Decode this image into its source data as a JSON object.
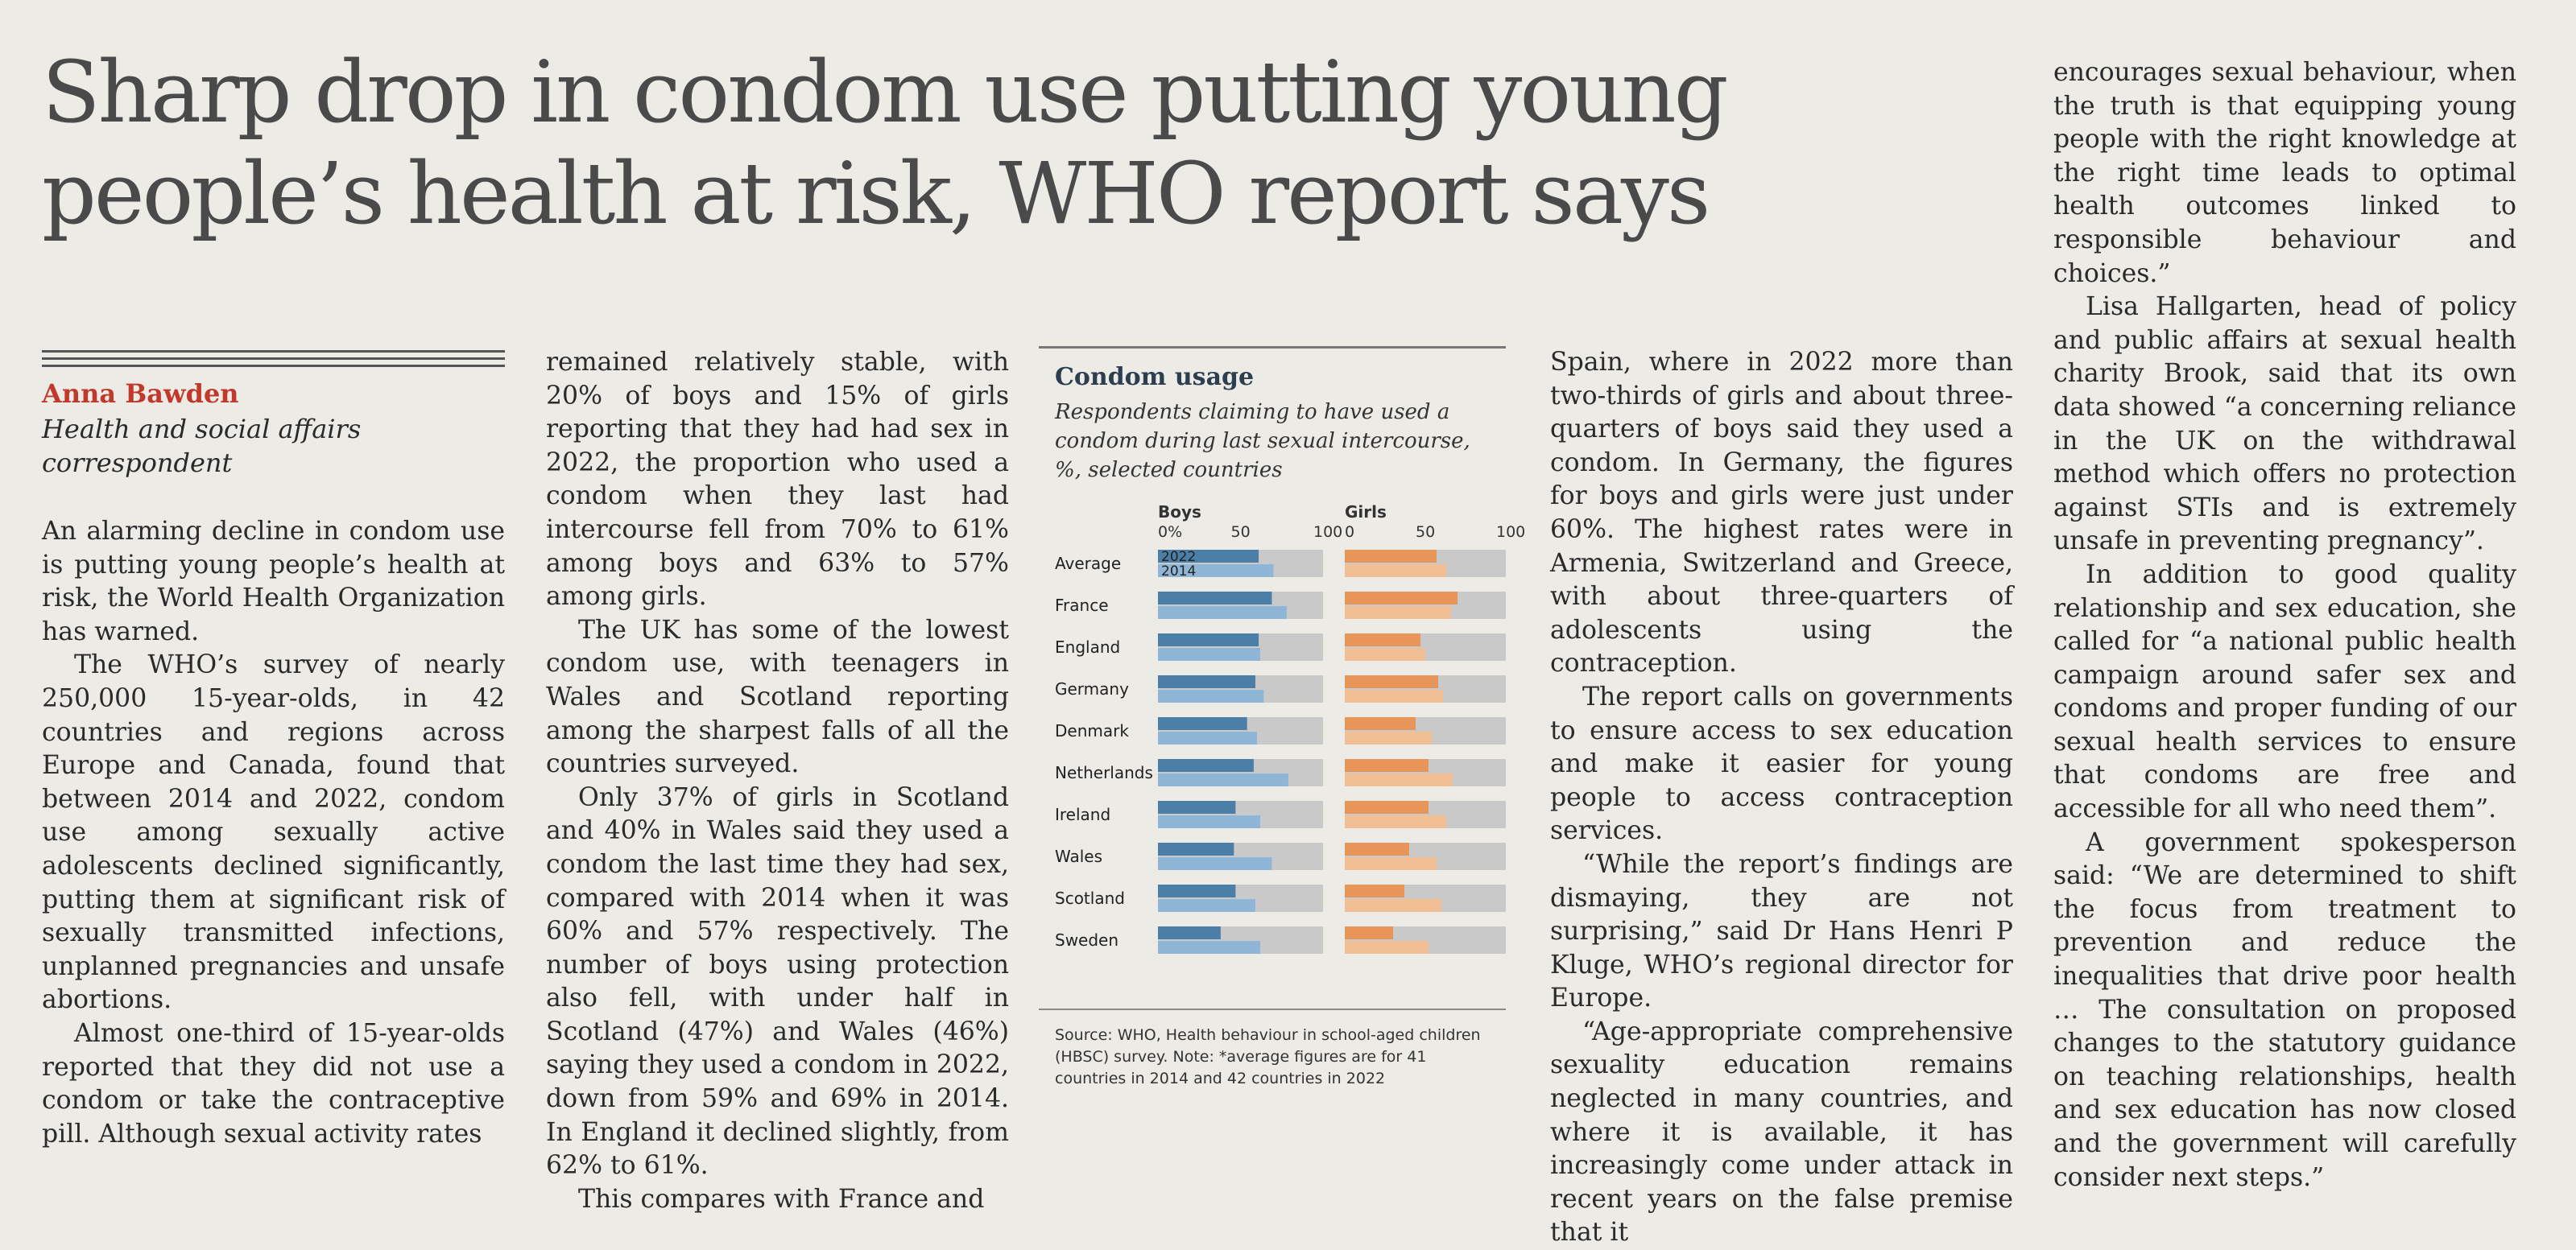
{
  "headline": "Sharp drop in condom use putting young people’s health at risk, WHO report says",
  "author": "Anna Bawden",
  "author_role": "Health and social affairs correspondent",
  "columns": {
    "c1": [
      "An alarming decline in condom use is putting young people’s health at risk, the World Health Organization has warned.",
      "The WHO’s survey of nearly 250,000 15-year-olds, in 42 countries and regions across Europe and Canada, found that between 2014 and 2022, condom use among sexually active adolescents declined significantly, putting them at significant risk of sexually transmitted infections, unplanned pregnancies and unsafe abortions.",
      "Almost one-third of 15-year-olds reported that they did not use a condom or take the contraceptive pill. Although sexual activity rates"
    ],
    "c2": [
      "remained relatively stable, with 20% of boys and 15% of girls reporting that they had had sex in 2022, the proportion who used a condom when they last had intercourse fell from 70% to 61% among boys and 63% to 57% among girls.",
      "The UK has some of the lowest condom use, with teenagers in Wales and Scotland reporting among the sharpest falls of all the countries surveyed.",
      "Only 37% of girls in Scotland and 40% in Wales said they used a condom the last time they had sex, compared with 2014 when it was 60% and 57% respectively. The number of boys using protection also fell, with under half in Scotland (47%) and Wales (46%) saying they used a condom in 2022, down from 59% and 69% in 2014. In England it declined slightly, from 62% to 61%.",
      "This compares with France and"
    ],
    "c4": [
      "Spain, where in 2022 more than two-thirds of girls and about three-quarters of boys said they used a condom. In Germany, the figures for boys and girls were just under 60%. The highest rates were in Armenia, Switzerland and Greece, with about three-quarters of adolescents using the contraception.",
      "The report calls on governments to ensure access to sex education and make it easier for young people to access contraception services.",
      "“While the report’s findings are dismaying, they are not surprising,” said Dr Hans Henri P Kluge, WHO’s regional director for Europe.",
      "“Age-appropriate comprehensive sexuality education remains neglected in many countries, and where it is available, it has increasingly come under attack in recent years on the false premise that it"
    ],
    "c5": [
      "encourages sexual behaviour, when the truth is that equipping young people with the right knowledge at the right time leads to optimal health outcomes linked to responsible behaviour and choices.”",
      "Lisa Hallgarten, head of policy and public affairs at sexual health charity Brook, said that its own data showed “a concerning reliance in the UK on the withdrawal method which offers no protection against STIs and is extremely unsafe in preventing pregnancy”.",
      "In addition to good quality relationship and sex education, she called for “a national public health campaign around safer sex and condoms and proper funding of our sexual health services to ensure that condoms are free and accessible for all who need them”.",
      "A government spokesperson said: “We are determined to shift the focus from treatment to prevention and reduce the inequalities that drive poor health … The consultation on proposed changes to the statutory guidance on teaching relationships, health and sex education has now closed and the government will carefully consider next steps.”"
    ]
  },
  "chart_data": {
    "type": "bar",
    "title": "Condom usage",
    "subtitle": "Respondents claiming to have used a condom during last sexual intercourse, %, selected countries",
    "categories": [
      "Average",
      "France",
      "England",
      "Germany",
      "Denmark",
      "Netherlands",
      "Ireland",
      "Wales",
      "Scotland",
      "Sweden"
    ],
    "panels": [
      {
        "name": "Boys",
        "series": [
          {
            "name": "2022",
            "values": [
              61,
              69,
              61,
              59,
              54,
              58,
              47,
              46,
              47,
              38
            ]
          },
          {
            "name": "2014",
            "values": [
              70,
              78,
              62,
              64,
              60,
              79,
              62,
              69,
              59,
              62
            ]
          }
        ]
      },
      {
        "name": "Girls",
        "series": [
          {
            "name": "2022",
            "values": [
              57,
              70,
              47,
              58,
              44,
              52,
              52,
              40,
              37,
              30
            ]
          },
          {
            "name": "2014",
            "values": [
              63,
              66,
              50,
              61,
              54,
              67,
              63,
              57,
              60,
              52
            ]
          }
        ]
      }
    ],
    "tick_labels": [
      "0%",
      "50",
      "100"
    ],
    "girls_tick_labels": [
      "0",
      "50",
      "100"
    ],
    "xlim": [
      0,
      100
    ],
    "colors": {
      "boys_2022": "#4b7fa8",
      "boys_2014": "#8fb6d6",
      "girls_2022": "#e8955a",
      "girls_2014": "#f2bf94",
      "track": "#c9c9c9"
    },
    "source": "Source: WHO, Health behaviour in school-aged children (HBSC) survey. Note: *average figures are for 41 countries in 2014 and 42 countries in 2022"
  }
}
